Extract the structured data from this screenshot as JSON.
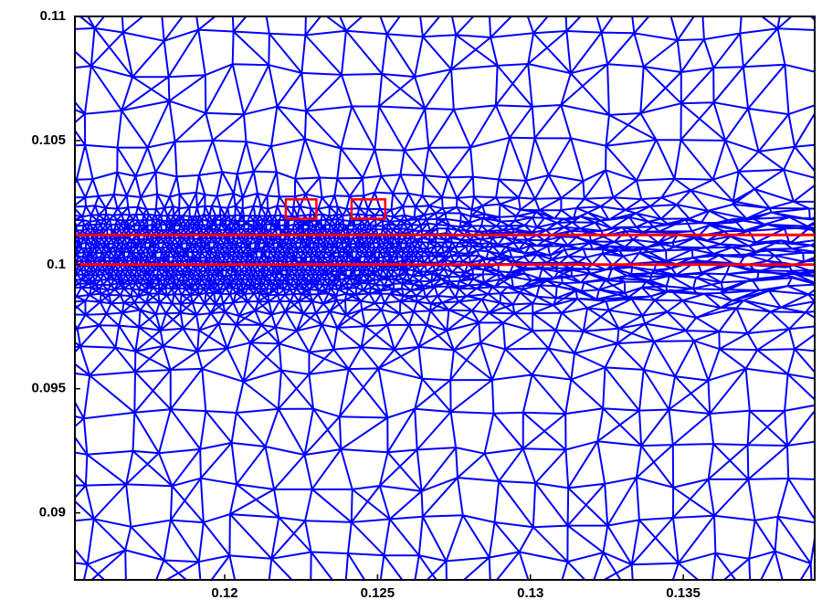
{
  "chart_data": {
    "type": "mesh",
    "xlim": [
      0.1151,
      0.1393
    ],
    "ylim": [
      0.0873,
      0.11
    ],
    "xticks": [
      0.12,
      0.125,
      0.13,
      0.135
    ],
    "yticks": [
      0.09,
      0.095,
      0.1,
      0.105,
      0.11
    ],
    "mesh_color": "#0000ff",
    "lines": [
      {
        "y": 0.1012,
        "color": "#ff0000"
      },
      {
        "y": 0.1,
        "color": "#ff0000"
      }
    ],
    "rects": [
      {
        "x0": 0.122,
        "x1": 0.123,
        "y0": 0.10185,
        "y1": 0.10263,
        "color": "#ff0000"
      },
      {
        "x0": 0.12415,
        "x1": 0.12525,
        "y0": 0.10185,
        "y1": 0.10263,
        "color": "#ff0000"
      }
    ]
  }
}
